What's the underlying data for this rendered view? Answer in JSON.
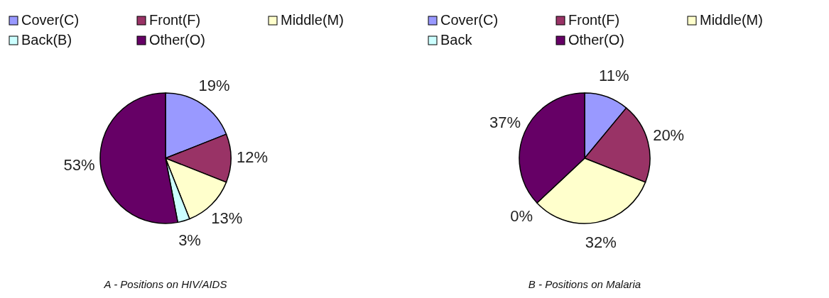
{
  "chart_data": [
    {
      "type": "pie",
      "title": "A - Positions on HIV/AIDS",
      "categories": [
        "Cover(C)",
        "Front(F)",
        "Middle(M)",
        "Back(B)",
        "Other(O)"
      ],
      "values": [
        19,
        12,
        13,
        3,
        53
      ],
      "value_labels": [
        "19%",
        "12%",
        "13%",
        "3%",
        "53%"
      ],
      "colors": [
        "#9999ff",
        "#993366",
        "#ffffcc",
        "#ccffff",
        "#660066"
      ],
      "legend": "top"
    },
    {
      "type": "pie",
      "title": "B - Positions on Malaria",
      "categories": [
        "Cover(C)",
        "Front(F)",
        "Middle(M)",
        "Back",
        "Other(O)"
      ],
      "values": [
        11,
        20,
        32,
        0,
        37
      ],
      "value_labels": [
        "11%",
        "20%",
        "32%",
        "0%",
        "37%"
      ],
      "colors": [
        "#9999ff",
        "#993366",
        "#ffffcc",
        "#ccffff",
        "#660066"
      ],
      "legend": "top"
    }
  ]
}
